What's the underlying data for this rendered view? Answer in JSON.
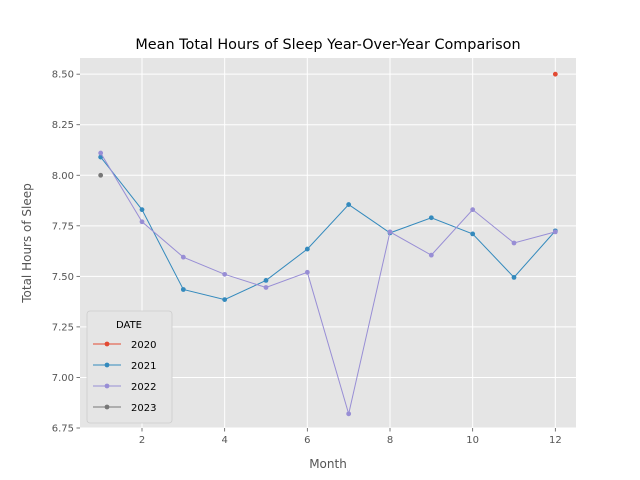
{
  "chart_data": {
    "type": "line",
    "title": "Mean Total Hours of Sleep Year-Over-Year Comparison",
    "xlabel": "Month",
    "ylabel": "Total Hours of Sleep",
    "xlim": [
      0.5,
      12.5
    ],
    "ylim": [
      6.75,
      8.58
    ],
    "xticks": [
      2,
      4,
      6,
      8,
      10,
      12
    ],
    "yticks": [
      6.75,
      7.0,
      7.25,
      7.5,
      7.75,
      8.0,
      8.25,
      8.5
    ],
    "grid": true,
    "legend": {
      "title": "DATE",
      "placement": "lower-left"
    },
    "series": [
      {
        "name": "2020",
        "color": "#E24A33",
        "x": [
          12
        ],
        "y": [
          8.5
        ]
      },
      {
        "name": "2021",
        "color": "#348ABD",
        "x": [
          1,
          2,
          3,
          4,
          5,
          6,
          7,
          8,
          9,
          10,
          11,
          12
        ],
        "y": [
          8.09,
          7.83,
          7.435,
          7.385,
          7.48,
          7.635,
          7.855,
          7.715,
          7.79,
          7.71,
          7.495,
          7.725
        ]
      },
      {
        "name": "2022",
        "color": "#988ED5",
        "x": [
          1,
          2,
          3,
          4,
          5,
          6,
          7,
          8,
          9,
          10,
          11,
          12
        ],
        "y": [
          8.11,
          7.77,
          7.595,
          7.51,
          7.445,
          7.52,
          6.82,
          7.72,
          7.605,
          7.83,
          7.665,
          7.72
        ]
      },
      {
        "name": "2023",
        "color": "#777777",
        "x": [
          1
        ],
        "y": [
          8.0
        ]
      }
    ]
  }
}
